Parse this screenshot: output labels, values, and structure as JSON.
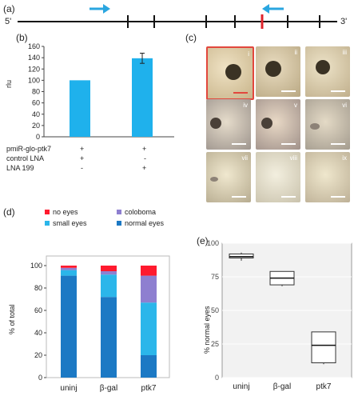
{
  "panel_labels": {
    "a": "(a)",
    "b": "(b)",
    "c": "(c)",
    "d": "(d)",
    "e": "(e)"
  },
  "panel_a": {
    "left_end": "5'",
    "right_end": "3'"
  },
  "panel_b": {
    "ylabel": "rlu",
    "rows": [
      {
        "label": "pmiR-glo-ptk7",
        "values": [
          "+",
          "+"
        ]
      },
      {
        "label": "control LNA",
        "values": [
          "+",
          "-"
        ]
      },
      {
        "label": "LNA 199",
        "values": [
          "-",
          "+"
        ]
      }
    ]
  },
  "panel_c": {
    "photos": [
      "i",
      "ii",
      "iii",
      "iv",
      "v",
      "vi",
      "vii",
      "viii",
      "ix"
    ]
  },
  "panel_d": {
    "ylabel": "% of total",
    "legend": [
      {
        "label": "no eyes",
        "color": "#ff1a2e"
      },
      {
        "label": "coloboma",
        "color": "#8e7fd0"
      },
      {
        "label": "small eyes",
        "color": "#2bb6ea"
      },
      {
        "label": "normal eyes",
        "color": "#1c79c4"
      }
    ]
  },
  "panel_e": {
    "ylabel": "% normal eyes"
  },
  "chart_data": [
    {
      "type": "bar",
      "categories": [
        "",
        ""
      ],
      "values": [
        100,
        139
      ],
      "error": [
        0,
        9
      ],
      "ylim": [
        0,
        160
      ],
      "yticks": [
        0,
        20,
        40,
        60,
        80,
        100,
        120,
        140,
        160
      ],
      "ylabel": "rlu"
    },
    {
      "type": "bar",
      "categories": [
        "uninj",
        "β-gal",
        "ptk7"
      ],
      "series": [
        {
          "name": "normal eyes",
          "values": [
            91,
            72,
            20
          ]
        },
        {
          "name": "small eyes",
          "values": [
            5,
            20,
            47
          ]
        },
        {
          "name": "coloboma",
          "values": [
            2,
            3,
            24
          ]
        },
        {
          "name": "no eyes",
          "values": [
            2,
            5,
            9
          ]
        }
      ],
      "ylim": [
        0,
        100
      ],
      "yticks": [
        0,
        20,
        40,
        60,
        80,
        100
      ],
      "ylabel": "% of total"
    },
    {
      "type": "box",
      "categories": [
        "uninj",
        "β-gal",
        "ptk7"
      ],
      "boxes": [
        {
          "min": 87,
          "q1": 89,
          "median": 90,
          "q3": 92,
          "max": 93
        },
        {
          "min": 68,
          "q1": 69,
          "median": 74,
          "q3": 79,
          "max": 79
        },
        {
          "min": 10,
          "q1": 11,
          "median": 24,
          "q3": 34,
          "max": 34
        }
      ],
      "ylim": [
        0,
        100
      ],
      "yticks": [
        0,
        25,
        50,
        75,
        100
      ],
      "ylabel": "% normal eyes"
    }
  ]
}
